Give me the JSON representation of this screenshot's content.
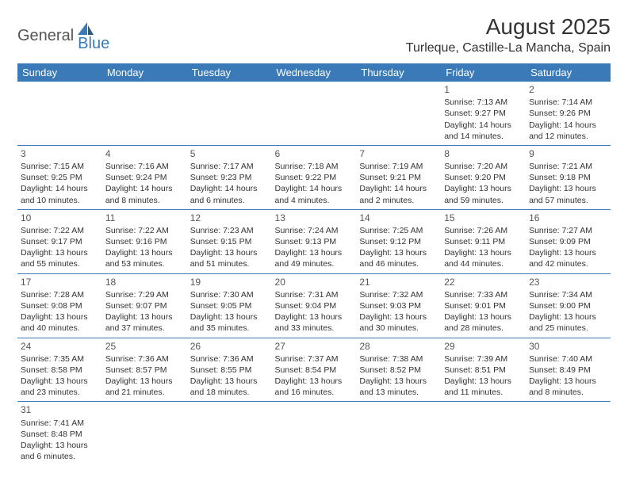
{
  "logo": {
    "text1": "General",
    "text2": "Blue"
  },
  "title": "August 2025",
  "location": "Turleque, Castille-La Mancha, Spain",
  "colors": {
    "header_bg": "#3a7ab8",
    "header_text": "#ffffff",
    "border": "#3a7ab8",
    "body_text": "#333333"
  },
  "weekdays": [
    "Sunday",
    "Monday",
    "Tuesday",
    "Wednesday",
    "Thursday",
    "Friday",
    "Saturday"
  ],
  "days": {
    "1": {
      "sunrise": "7:13 AM",
      "sunset": "9:27 PM",
      "dl_h": 14,
      "dl_m": 14
    },
    "2": {
      "sunrise": "7:14 AM",
      "sunset": "9:26 PM",
      "dl_h": 14,
      "dl_m": 12
    },
    "3": {
      "sunrise": "7:15 AM",
      "sunset": "9:25 PM",
      "dl_h": 14,
      "dl_m": 10
    },
    "4": {
      "sunrise": "7:16 AM",
      "sunset": "9:24 PM",
      "dl_h": 14,
      "dl_m": 8
    },
    "5": {
      "sunrise": "7:17 AM",
      "sunset": "9:23 PM",
      "dl_h": 14,
      "dl_m": 6
    },
    "6": {
      "sunrise": "7:18 AM",
      "sunset": "9:22 PM",
      "dl_h": 14,
      "dl_m": 4
    },
    "7": {
      "sunrise": "7:19 AM",
      "sunset": "9:21 PM",
      "dl_h": 14,
      "dl_m": 2
    },
    "8": {
      "sunrise": "7:20 AM",
      "sunset": "9:20 PM",
      "dl_h": 13,
      "dl_m": 59
    },
    "9": {
      "sunrise": "7:21 AM",
      "sunset": "9:18 PM",
      "dl_h": 13,
      "dl_m": 57
    },
    "10": {
      "sunrise": "7:22 AM",
      "sunset": "9:17 PM",
      "dl_h": 13,
      "dl_m": 55
    },
    "11": {
      "sunrise": "7:22 AM",
      "sunset": "9:16 PM",
      "dl_h": 13,
      "dl_m": 53
    },
    "12": {
      "sunrise": "7:23 AM",
      "sunset": "9:15 PM",
      "dl_h": 13,
      "dl_m": 51
    },
    "13": {
      "sunrise": "7:24 AM",
      "sunset": "9:13 PM",
      "dl_h": 13,
      "dl_m": 49
    },
    "14": {
      "sunrise": "7:25 AM",
      "sunset": "9:12 PM",
      "dl_h": 13,
      "dl_m": 46
    },
    "15": {
      "sunrise": "7:26 AM",
      "sunset": "9:11 PM",
      "dl_h": 13,
      "dl_m": 44
    },
    "16": {
      "sunrise": "7:27 AM",
      "sunset": "9:09 PM",
      "dl_h": 13,
      "dl_m": 42
    },
    "17": {
      "sunrise": "7:28 AM",
      "sunset": "9:08 PM",
      "dl_h": 13,
      "dl_m": 40
    },
    "18": {
      "sunrise": "7:29 AM",
      "sunset": "9:07 PM",
      "dl_h": 13,
      "dl_m": 37
    },
    "19": {
      "sunrise": "7:30 AM",
      "sunset": "9:05 PM",
      "dl_h": 13,
      "dl_m": 35
    },
    "20": {
      "sunrise": "7:31 AM",
      "sunset": "9:04 PM",
      "dl_h": 13,
      "dl_m": 33
    },
    "21": {
      "sunrise": "7:32 AM",
      "sunset": "9:03 PM",
      "dl_h": 13,
      "dl_m": 30
    },
    "22": {
      "sunrise": "7:33 AM",
      "sunset": "9:01 PM",
      "dl_h": 13,
      "dl_m": 28
    },
    "23": {
      "sunrise": "7:34 AM",
      "sunset": "9:00 PM",
      "dl_h": 13,
      "dl_m": 25
    },
    "24": {
      "sunrise": "7:35 AM",
      "sunset": "8:58 PM",
      "dl_h": 13,
      "dl_m": 23
    },
    "25": {
      "sunrise": "7:36 AM",
      "sunset": "8:57 PM",
      "dl_h": 13,
      "dl_m": 21
    },
    "26": {
      "sunrise": "7:36 AM",
      "sunset": "8:55 PM",
      "dl_h": 13,
      "dl_m": 18
    },
    "27": {
      "sunrise": "7:37 AM",
      "sunset": "8:54 PM",
      "dl_h": 13,
      "dl_m": 16
    },
    "28": {
      "sunrise": "7:38 AM",
      "sunset": "8:52 PM",
      "dl_h": 13,
      "dl_m": 13
    },
    "29": {
      "sunrise": "7:39 AM",
      "sunset": "8:51 PM",
      "dl_h": 13,
      "dl_m": 11
    },
    "30": {
      "sunrise": "7:40 AM",
      "sunset": "8:49 PM",
      "dl_h": 13,
      "dl_m": 8
    },
    "31": {
      "sunrise": "7:41 AM",
      "sunset": "8:48 PM",
      "dl_h": 13,
      "dl_m": 6
    }
  },
  "labels": {
    "sunrise": "Sunrise:",
    "sunset": "Sunset:",
    "daylight": "Daylight:",
    "hours": "hours",
    "and": "and",
    "minutes": "minutes."
  },
  "first_weekday_index": 5
}
